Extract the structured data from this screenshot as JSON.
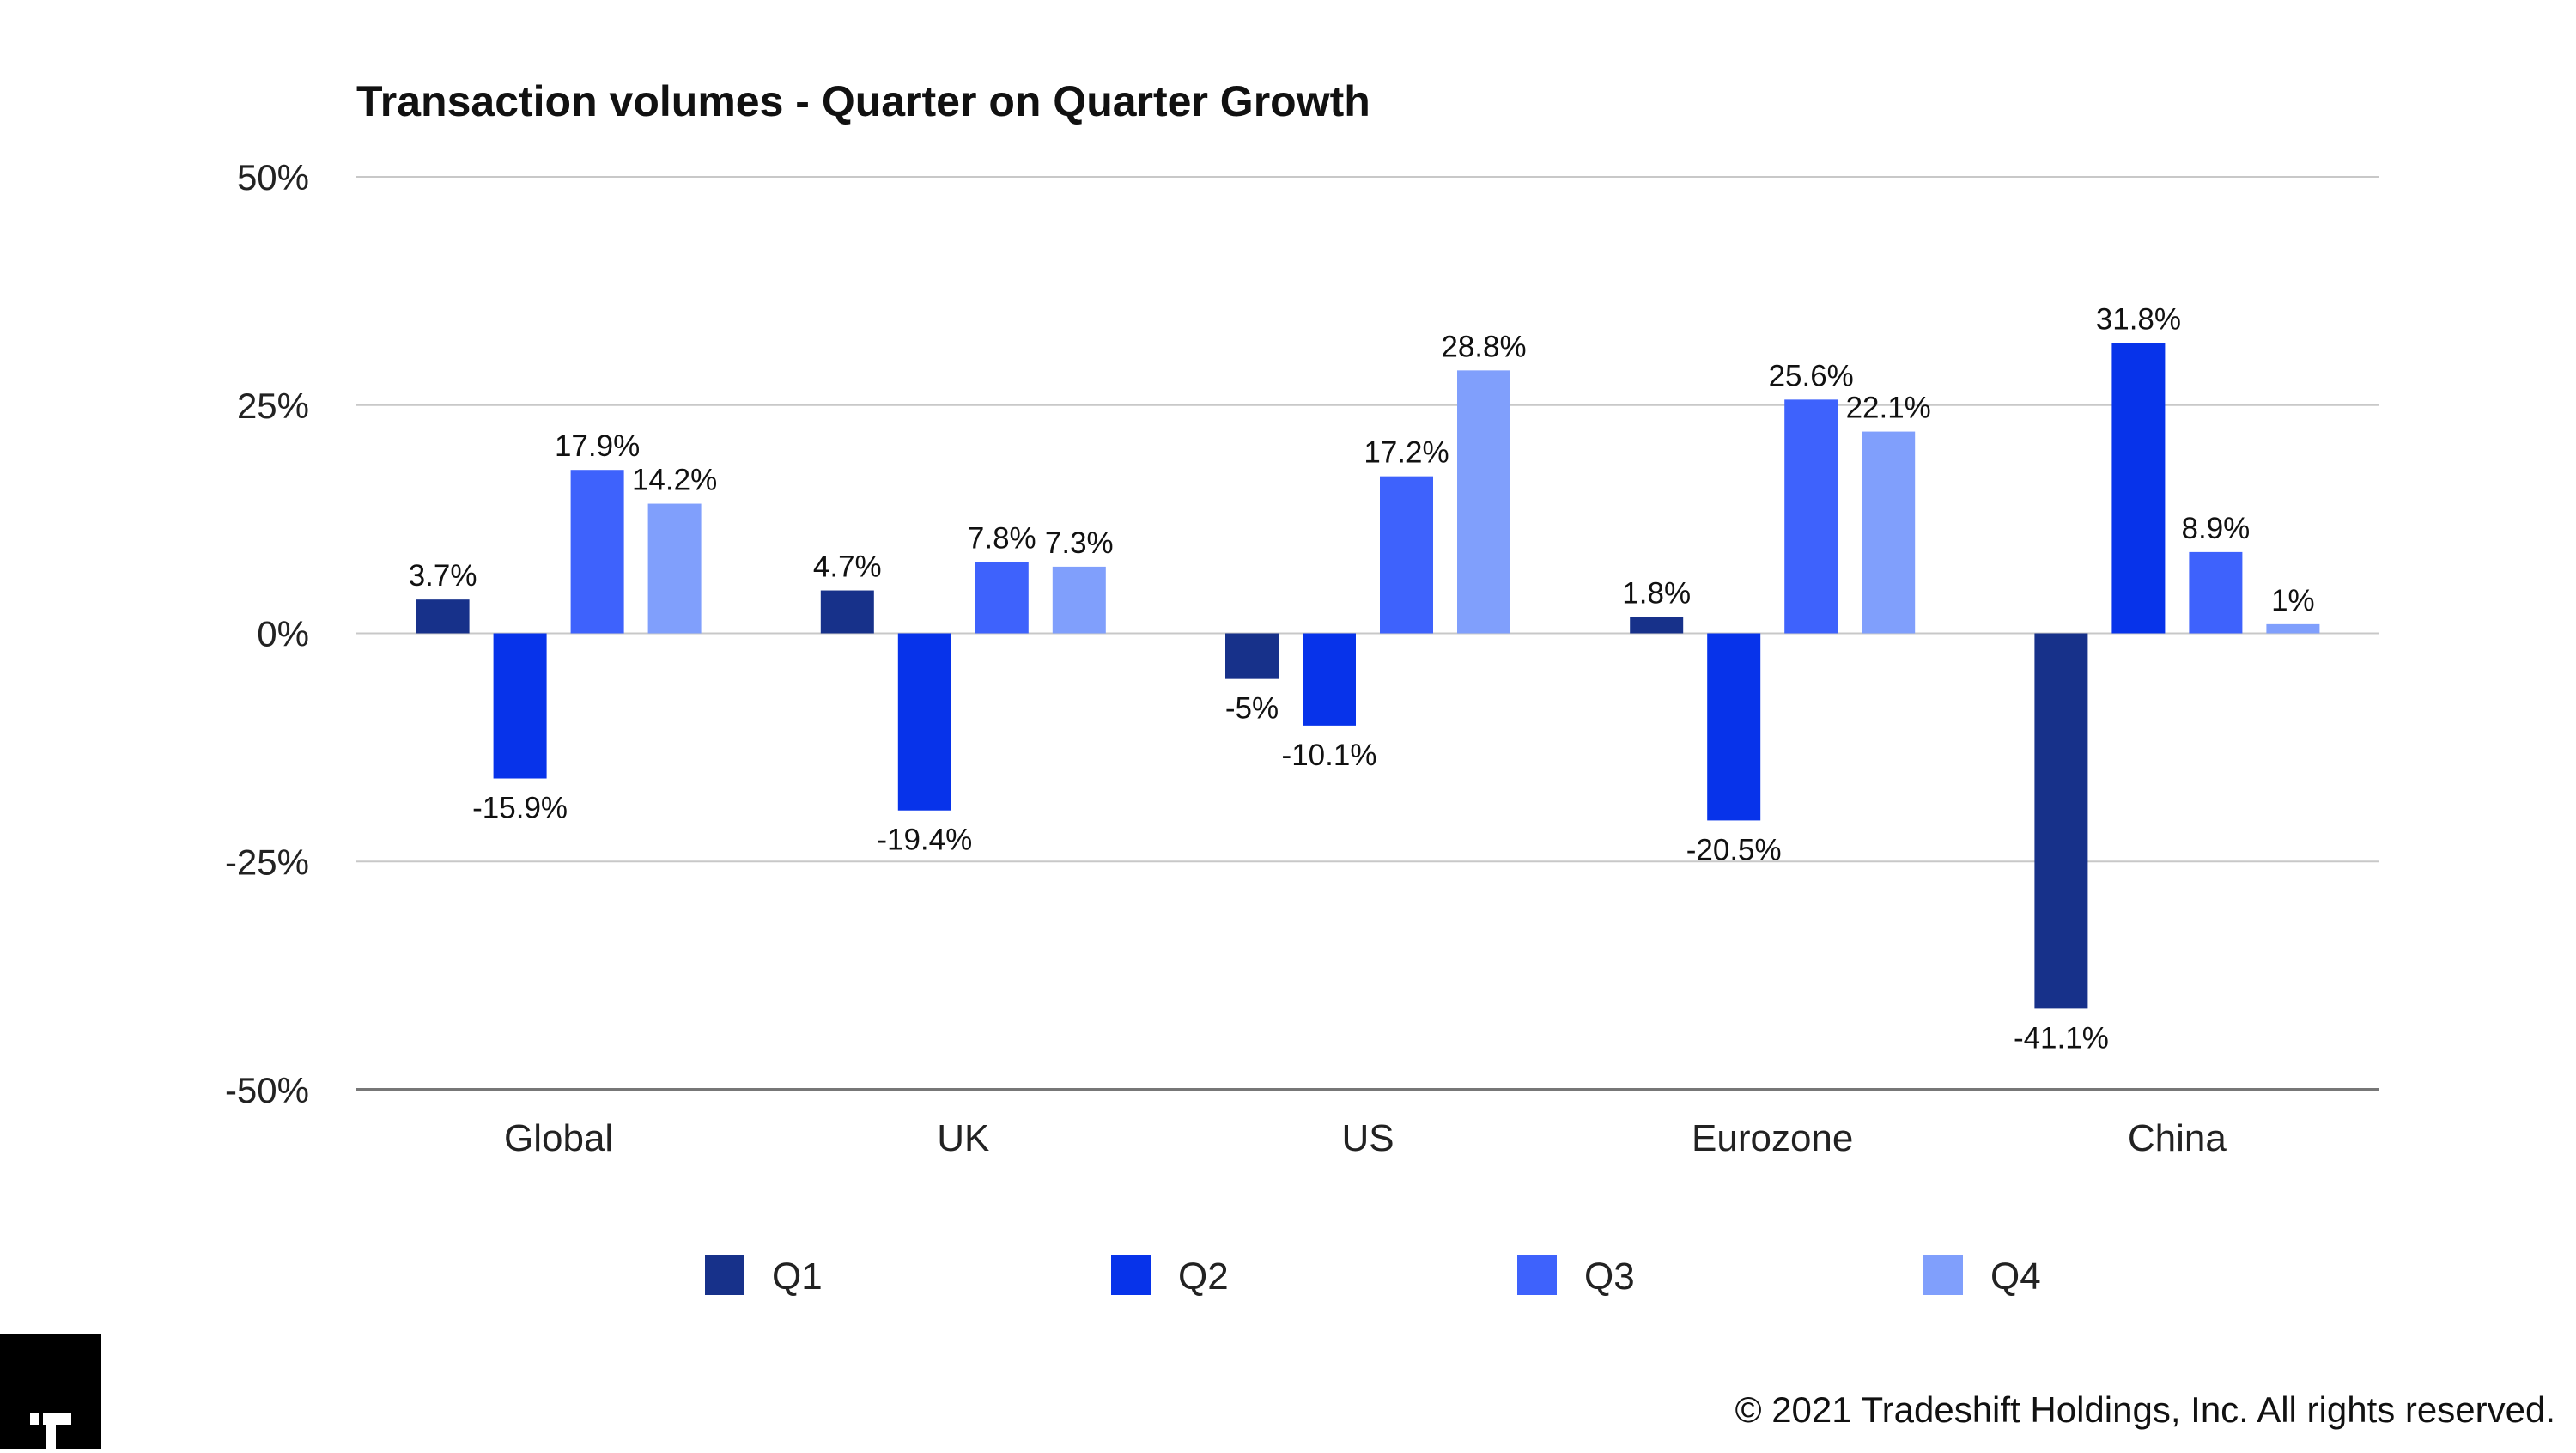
{
  "chart_data": {
    "type": "bar",
    "title": "Transaction volumes - Quarter on Quarter Growth",
    "categories": [
      "Global",
      "UK",
      "US",
      "Eurozone",
      "China"
    ],
    "series": [
      {
        "name": "Q1",
        "color": "#17318a",
        "values": [
          3.7,
          4.7,
          -5,
          1.8,
          -41.1
        ],
        "labels": [
          "3.7%",
          "4.7%",
          "-5%",
          "1.8%",
          "-41.1%"
        ]
      },
      {
        "name": "Q2",
        "color": "#0733ea",
        "values": [
          -15.9,
          -19.4,
          -10.1,
          -20.5,
          31.8
        ],
        "labels": [
          "-15.9%",
          "-19.4%",
          "-10.1%",
          "-20.5%",
          "31.8%"
        ]
      },
      {
        "name": "Q3",
        "color": "#3e62fc",
        "values": [
          17.9,
          7.8,
          17.2,
          25.6,
          8.9
        ],
        "labels": [
          "17.9%",
          "7.8%",
          "17.2%",
          "25.6%",
          "8.9%"
        ]
      },
      {
        "name": "Q4",
        "color": "#809ffc",
        "values": [
          14.2,
          7.3,
          28.8,
          22.1,
          1
        ],
        "labels": [
          "14.2%",
          "7.3%",
          "28.8%",
          "22.1%",
          "1%"
        ]
      }
    ],
    "ylim": [
      -50,
      50
    ],
    "yticks": [
      50,
      25,
      0,
      -25,
      -50
    ],
    "ytick_labels": [
      "50%",
      "25%",
      "0%",
      "-25%",
      "-50%"
    ],
    "xlabel": "",
    "ylabel": "",
    "grid": true,
    "legend_position": "bottom"
  },
  "footer": {
    "copyright": "© 2021 Tradeshift Holdings, Inc. All rights reserved."
  },
  "logo": {
    "text": "T"
  }
}
